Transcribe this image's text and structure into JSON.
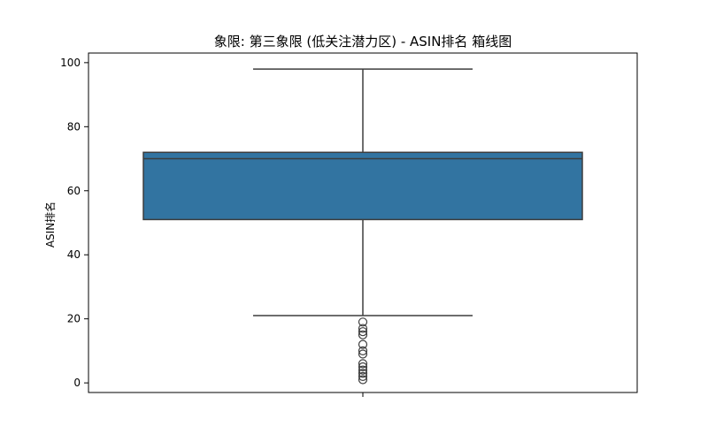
{
  "chart_data": {
    "type": "boxplot",
    "title": "象限: 第三象限 (低关注潜力区) - ASIN排名 箱线图",
    "xlabel": "",
    "ylabel": "ASIN排名",
    "ylim": [
      -3,
      103
    ],
    "yticks": [
      0,
      20,
      40,
      60,
      80,
      100
    ],
    "grid": false,
    "box": {
      "q1": 51,
      "median": 70,
      "q3": 72,
      "whisker_low": 21,
      "whisker_high": 98,
      "outliers": [
        19,
        17,
        16,
        15,
        12,
        10,
        9,
        6,
        5,
        4,
        3,
        2,
        1
      ]
    },
    "colors": {
      "box_fill": "#3274a1",
      "line": "#3d3d3d"
    }
  }
}
